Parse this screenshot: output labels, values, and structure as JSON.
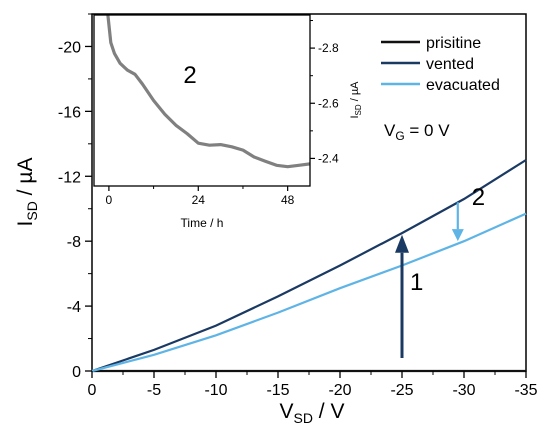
{
  "chart_data": [
    {
      "type": "line",
      "xlabel": "V",
      "xlabel_sub": "SD",
      "xlabel_unit": " / V",
      "ylabel": "I",
      "ylabel_sub": "SD",
      "ylabel_unit": " / µA",
      "xlim": [
        0,
        -35
      ],
      "ylim": [
        0,
        -22
      ],
      "x_ticks": [
        0,
        -5,
        -10,
        -15,
        -20,
        -25,
        -30,
        -35
      ],
      "x_tick_labels": [
        "0",
        "-5",
        "-10",
        "-15",
        "-20",
        "-25",
        "-30",
        "-35"
      ],
      "y_ticks": [
        0,
        -4,
        -8,
        -12,
        -16,
        -20
      ],
      "y_tick_labels": [
        "0",
        "-4",
        "-8",
        "-12",
        "-16",
        "-20"
      ],
      "grid": false,
      "legend_position": "top-right",
      "series": [
        {
          "name": "prisitine",
          "color": "#111111",
          "x": [
            0,
            -5,
            -10,
            -15,
            -20,
            -25,
            -30,
            -35
          ],
          "y": [
            0,
            0,
            0,
            0,
            0,
            0,
            0,
            0
          ]
        },
        {
          "name": "vented",
          "color": "#1b3a63",
          "x": [
            0,
            -5,
            -10,
            -15,
            -20,
            -25,
            -30,
            -35
          ],
          "y": [
            0,
            -1.3,
            -2.8,
            -4.6,
            -6.5,
            -8.5,
            -10.6,
            -13.0
          ]
        },
        {
          "name": "evacuated",
          "color": "#5fb4e6",
          "x": [
            0,
            -5,
            -10,
            -15,
            -20,
            -25,
            -30,
            -35
          ],
          "y": [
            0,
            -1.0,
            -2.2,
            -3.6,
            -5.1,
            -6.5,
            -8.0,
            -9.7
          ]
        }
      ],
      "annotations": {
        "condition_prefix": "V",
        "condition_sub": "G",
        "condition_suffix": " = 0 V",
        "arrow1": {
          "label": "1",
          "x": -25,
          "y_from": -0.8,
          "y_to": -8.4,
          "color": "#1b3a63"
        },
        "arrow2": {
          "label": "2",
          "x": -29.5,
          "y_from": -10.4,
          "y_to": -8.0,
          "color": "#5fb4e6"
        }
      }
    },
    {
      "type": "line",
      "title": "2",
      "xlabel": "Time / h",
      "ylabel": "I",
      "ylabel_sub": "SD",
      "ylabel_unit": " / µA",
      "xlim": [
        -4,
        54
      ],
      "ylim": [
        -2.3,
        -2.92
      ],
      "x_ticks": [
        0,
        24,
        48
      ],
      "x_tick_labels": [
        "0",
        "24",
        "48"
      ],
      "y_ticks": [
        -2.4,
        -2.6,
        -2.8
      ],
      "y_tick_labels": [
        "-2.4",
        "-2.6",
        "-2.8"
      ],
      "series": [
        {
          "color": "#808080",
          "x": [
            -0.5,
            0.5,
            1.5,
            3,
            5,
            7,
            9,
            12,
            15,
            18,
            21,
            24,
            27,
            30,
            33,
            36,
            39,
            42,
            45,
            48,
            51,
            54
          ],
          "y": [
            -2.95,
            -2.82,
            -2.78,
            -2.745,
            -2.72,
            -2.705,
            -2.67,
            -2.61,
            -2.56,
            -2.52,
            -2.49,
            -2.455,
            -2.448,
            -2.45,
            -2.442,
            -2.43,
            -2.405,
            -2.39,
            -2.375,
            -2.37,
            -2.375,
            -2.38
          ]
        }
      ]
    }
  ]
}
